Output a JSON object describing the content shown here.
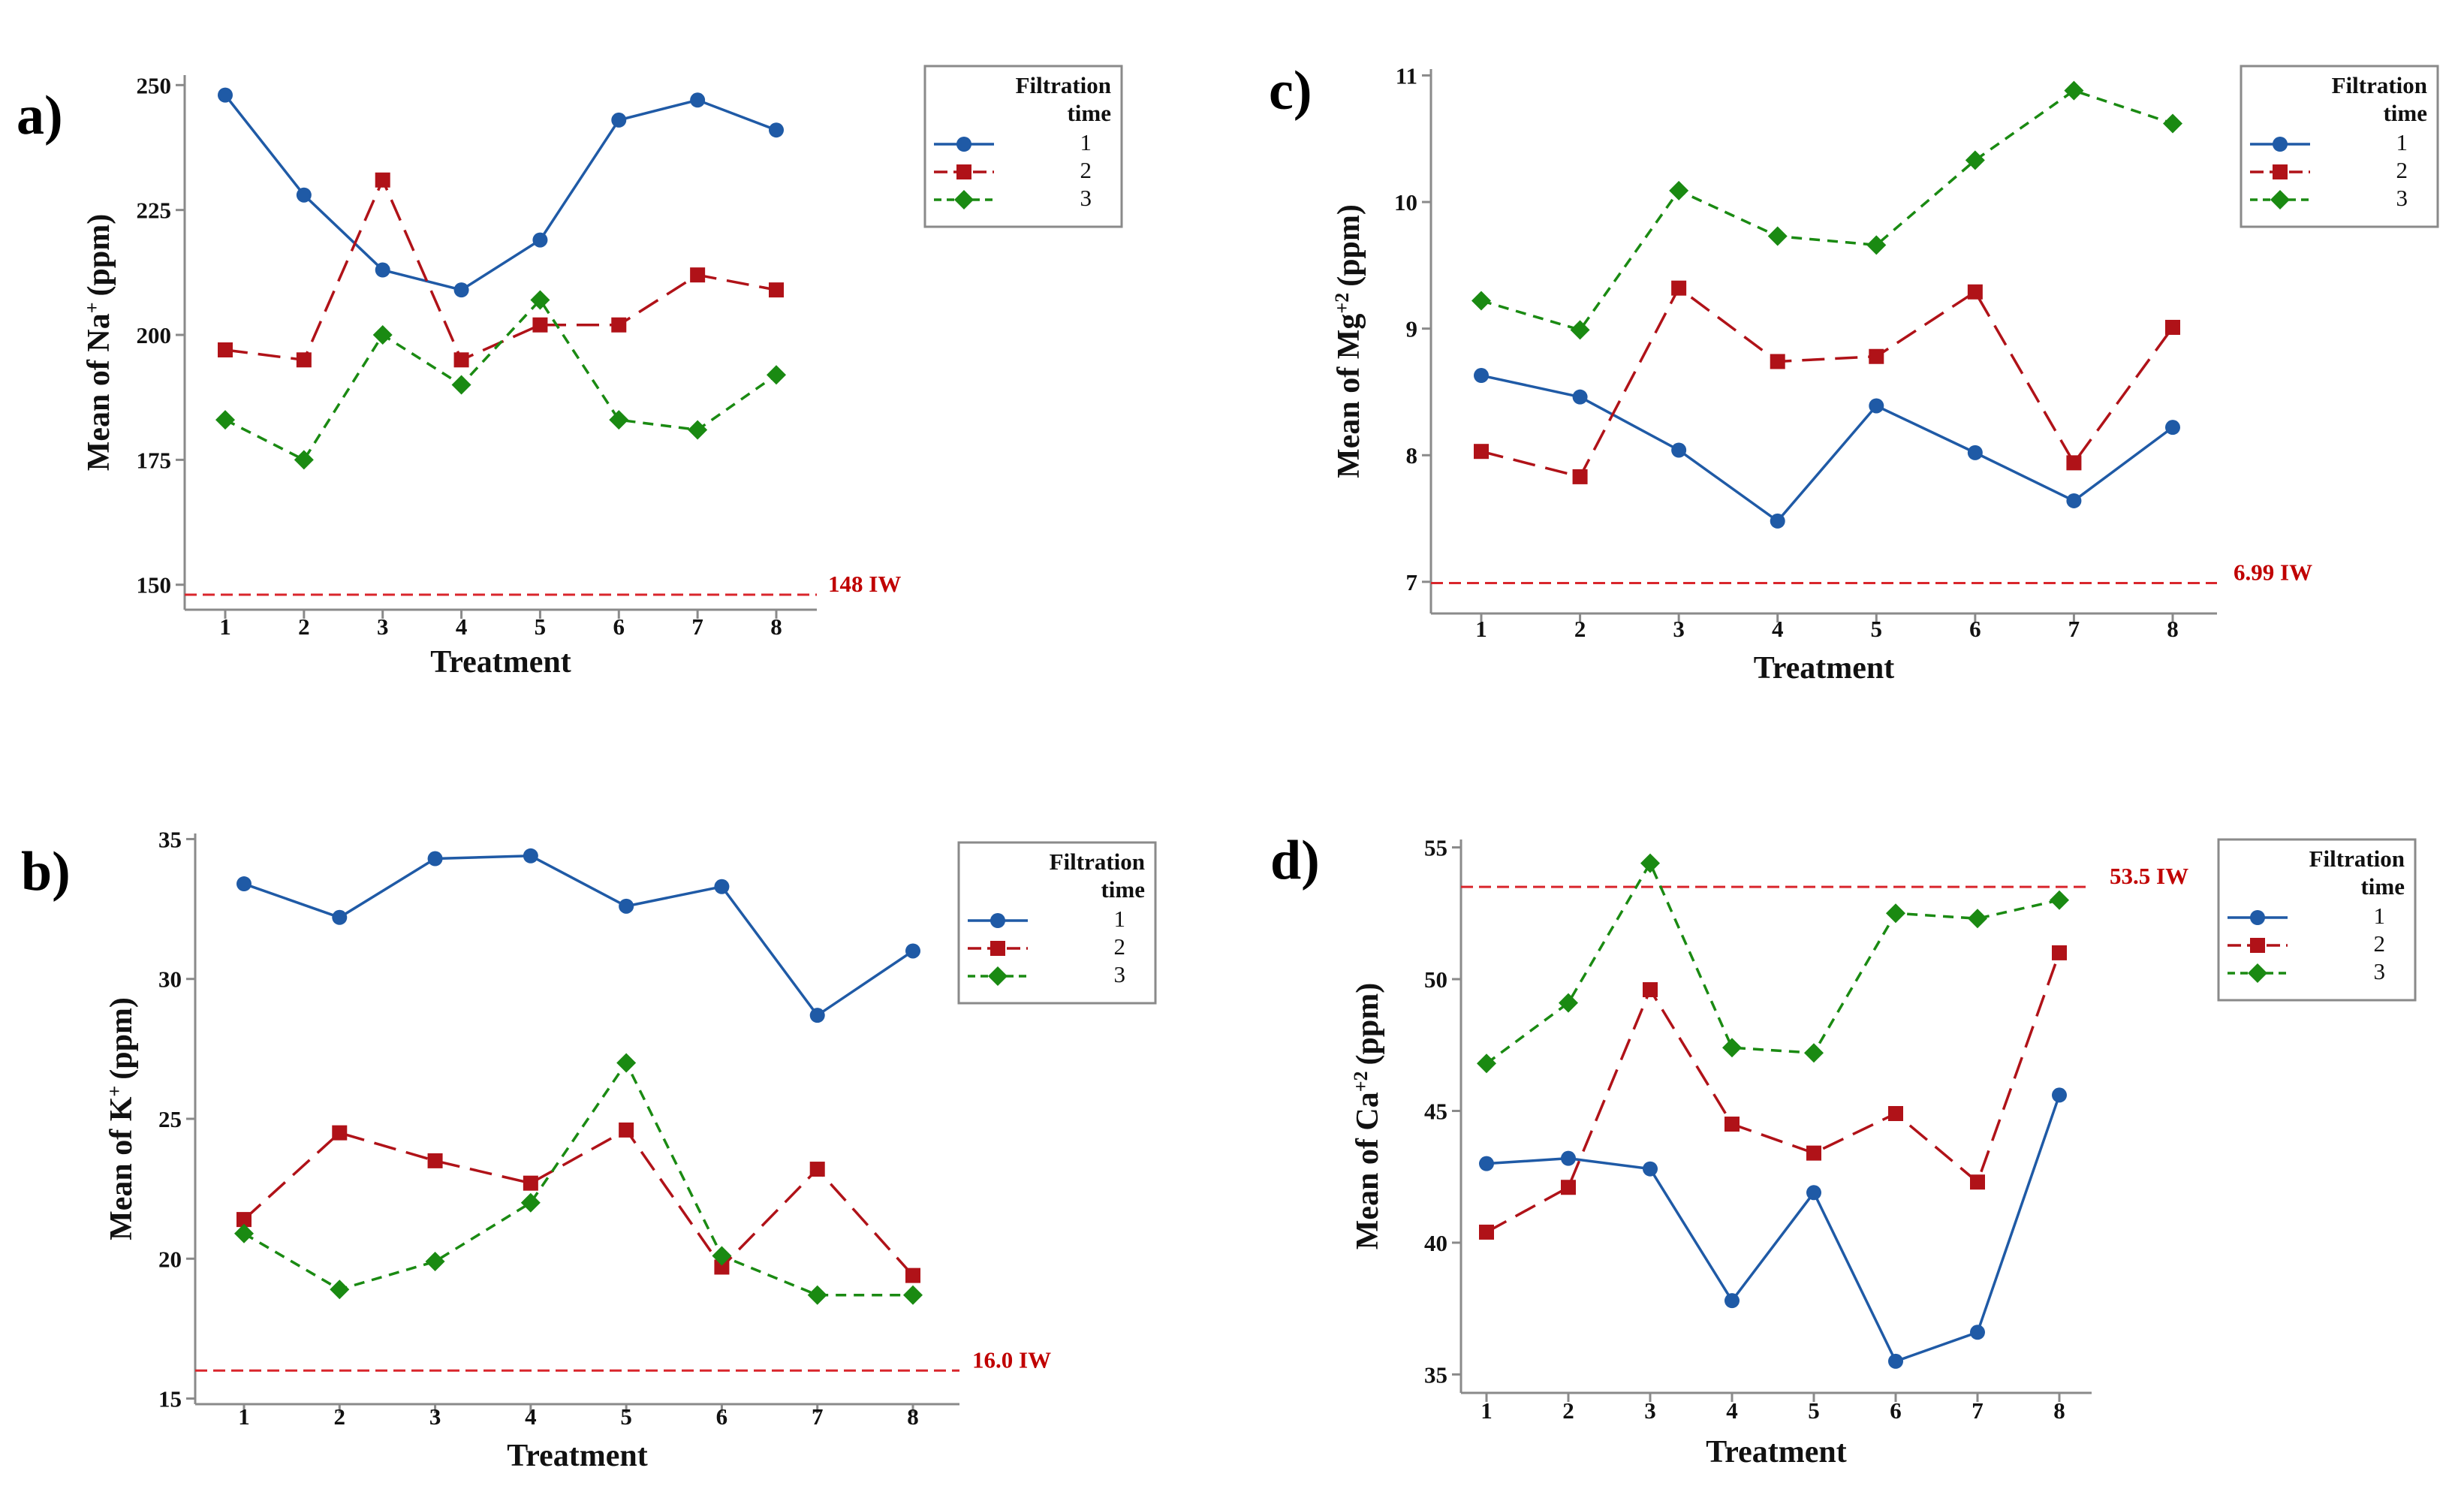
{
  "colors": {
    "series1": "#1f5aa6",
    "series2": "#b01218",
    "series3": "#1a8a12",
    "reference": "#d9262c",
    "axis": "#8a8a8a"
  },
  "chart_data": [
    {
      "id": "a",
      "panel_label": "a)",
      "type": "line",
      "xlabel": "Treatment",
      "ylabel_parts": [
        "Mean of Na",
        "+",
        "(ppm)"
      ],
      "categories": [
        "1",
        "2",
        "3",
        "4",
        "5",
        "6",
        "7",
        "8"
      ],
      "ylim": [
        145,
        252
      ],
      "yticks": [
        150,
        175,
        200,
        225,
        250
      ],
      "series": [
        {
          "name": "1",
          "values": [
            248,
            228,
            213,
            209,
            219,
            243,
            247,
            241
          ]
        },
        {
          "name": "2",
          "values": [
            197,
            195,
            231,
            195,
            202,
            202,
            212,
            209
          ]
        },
        {
          "name": "3",
          "values": [
            183,
            175,
            200,
            190,
            207,
            183,
            181,
            192
          ]
        }
      ],
      "reference": {
        "value": 148,
        "label": "148 IW"
      },
      "legend": {
        "title_lines": [
          "Filtration",
          "time"
        ],
        "position": "right"
      }
    },
    {
      "id": "b",
      "panel_label": "b)",
      "type": "line",
      "xlabel": "Treatment",
      "ylabel_parts": [
        "Mean of K",
        "+",
        "(ppm)"
      ],
      "categories": [
        "1",
        "2",
        "3",
        "4",
        "5",
        "6",
        "7",
        "8"
      ],
      "ylim": [
        14.8,
        35.2
      ],
      "yticks": [
        15,
        20,
        25,
        30,
        35
      ],
      "series": [
        {
          "name": "1",
          "values": [
            33.4,
            32.2,
            34.3,
            34.4,
            32.6,
            33.3,
            28.7,
            31.0
          ]
        },
        {
          "name": "2",
          "values": [
            21.4,
            24.5,
            23.5,
            22.7,
            24.6,
            19.7,
            23.2,
            19.4
          ]
        },
        {
          "name": "3",
          "values": [
            20.9,
            18.9,
            19.9,
            22.0,
            27.0,
            20.1,
            18.7,
            18.7
          ]
        }
      ],
      "reference": {
        "value": 16.0,
        "label": "16.0 IW"
      },
      "legend": {
        "title_lines": [
          "Filtration",
          "time"
        ],
        "position": "right"
      }
    },
    {
      "id": "c",
      "panel_label": "c)",
      "type": "line",
      "xlabel": "Treatment",
      "ylabel_parts": [
        "Mean of Mg",
        "+2",
        "(ppm)"
      ],
      "categories": [
        "1",
        "2",
        "3",
        "4",
        "5",
        "6",
        "7",
        "8"
      ],
      "ylim": [
        6.75,
        11.05
      ],
      "yticks": [
        7,
        8,
        9,
        10,
        11
      ],
      "series": [
        {
          "name": "1",
          "values": [
            8.63,
            8.46,
            8.04,
            7.48,
            8.39,
            8.02,
            7.64,
            8.22
          ]
        },
        {
          "name": "2",
          "values": [
            8.03,
            7.83,
            9.32,
            8.74,
            8.78,
            9.29,
            7.94,
            9.01
          ]
        },
        {
          "name": "3",
          "values": [
            9.22,
            8.99,
            10.09,
            9.73,
            9.66,
            10.33,
            10.88,
            10.62
          ]
        }
      ],
      "reference": {
        "value": 6.99,
        "label": "6.99 IW"
      },
      "legend": {
        "title_lines": [
          "Filtration",
          "time"
        ],
        "position": "right"
      }
    },
    {
      "id": "d",
      "panel_label": "d)",
      "type": "line",
      "xlabel": "Treatment",
      "ylabel_parts": [
        "Mean of Ca",
        "+2",
        "(ppm)"
      ],
      "categories": [
        "1",
        "2",
        "3",
        "4",
        "5",
        "6",
        "7",
        "8"
      ],
      "ylim": [
        34.3,
        55.3
      ],
      "yticks": [
        35,
        40,
        45,
        50,
        55
      ],
      "series": [
        {
          "name": "1",
          "values": [
            43.0,
            43.2,
            42.8,
            37.8,
            41.9,
            35.5,
            36.6,
            45.6
          ]
        },
        {
          "name": "2",
          "values": [
            40.4,
            42.1,
            49.6,
            44.5,
            43.4,
            44.9,
            42.3,
            51.0
          ]
        },
        {
          "name": "3",
          "values": [
            46.8,
            49.1,
            54.4,
            47.4,
            47.2,
            52.5,
            52.3,
            53.0
          ]
        }
      ],
      "reference": {
        "value": 53.5,
        "label": "53.5 IW"
      },
      "legend": {
        "title_lines": [
          "Filtration",
          "time"
        ],
        "position": "right"
      }
    }
  ]
}
